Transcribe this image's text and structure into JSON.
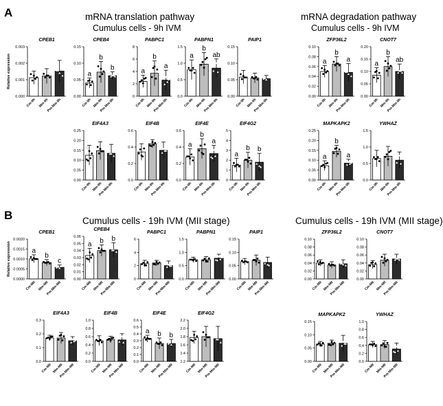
{
  "figure": {
    "panels": [
      {
        "letter": "A",
        "left_title": "mRNA translation pathway",
        "left_subtitle": "Cumulus cells - 9h IVM",
        "right_title": "mRNA degradation pathway",
        "right_subtitle": "Cumulus cells - 9h IVM"
      },
      {
        "letter": "B",
        "left_title": "Cumulus cells - 19h IVM (MII stage)",
        "right_title": "Cumulus cells - 19h IVM (MII stage)"
      }
    ],
    "colors": {
      "group1": "#ffffff",
      "group2": "#bdbdbd",
      "group3": "#2b2b2b",
      "stroke": "#000000"
    }
  },
  "chart_data": [
    {
      "type": "bar",
      "title": "CPEB1",
      "ylabel": "Relative expression",
      "ylim": [
        0,
        0.003
      ],
      "yticks": [
        "0.000",
        "0.001",
        "0.002",
        "0.003"
      ],
      "categories": [
        "Cm-9h",
        "Mm-9h",
        "Pm-Mm-9h"
      ],
      "values": [
        0.00112,
        0.00122,
        0.00152
      ],
      "errors": [
        0.0004,
        0.00045,
        0.00065
      ],
      "letters": [
        "",
        "",
        ""
      ]
    },
    {
      "type": "bar",
      "title": "CPEB4",
      "ylabel": "",
      "ylim": [
        0,
        0.15
      ],
      "yticks": [
        "0.00",
        "0.05",
        "0.10",
        "0.15"
      ],
      "categories": [
        "Cm-9h",
        "Mm-9h",
        "Pm-Mm-9h"
      ],
      "values": [
        0.04,
        0.073,
        0.062
      ],
      "errors": [
        0.015,
        0.032,
        0.012
      ],
      "letters": [
        "a",
        "b",
        "b"
      ]
    },
    {
      "type": "bar",
      "title": "PABPC1",
      "ylabel": "",
      "ylim": [
        0,
        8
      ],
      "yticks": [
        "0",
        "2",
        "4",
        "6",
        "8"
      ],
      "categories": [
        "Cm-9h",
        "Mm-9h",
        "Pm-Mm-9h"
      ],
      "values": [
        2.4,
        3.7,
        2.6
      ],
      "errors": [
        1.0,
        2.0,
        1.6
      ],
      "letters": [
        "a",
        "b",
        "a"
      ]
    },
    {
      "type": "bar",
      "title": "PABPN1",
      "ylabel": "",
      "ylim": [
        0,
        1.5
      ],
      "yticks": [
        "0.0",
        "0.5",
        "1.0",
        "1.5"
      ],
      "categories": [
        "Cm-9h",
        "Mm-9h",
        "Pm-Mm-9h"
      ],
      "values": [
        0.8,
        0.97,
        0.85
      ],
      "errors": [
        0.3,
        0.35,
        0.28
      ],
      "letters": [
        "a",
        "b",
        "ab"
      ]
    },
    {
      "type": "bar",
      "title": "PAIP1",
      "ylabel": "",
      "ylim": [
        0,
        0.15
      ],
      "yticks": [
        "0.00",
        "0.05",
        "0.10",
        "0.15"
      ],
      "categories": [
        "Cm-9h",
        "Mm-9h",
        "Pm-Mm-9h"
      ],
      "values": [
        0.058,
        0.055,
        0.053
      ],
      "errors": [
        0.02,
        0.015,
        0.01
      ],
      "letters": [
        "",
        "",
        ""
      ]
    },
    {
      "type": "bar",
      "title": "EIF4A3",
      "ylabel": "",
      "ylim": [
        0,
        0.25
      ],
      "yticks": [
        "0.00",
        "0.05",
        "0.10",
        "0.15",
        "0.20",
        "0.25"
      ],
      "categories": [
        "Cm-9h",
        "Mm-9h",
        "Pm-Mm-9h"
      ],
      "values": [
        0.125,
        0.148,
        0.135
      ],
      "errors": [
        0.05,
        0.045,
        0.045
      ],
      "letters": [
        "",
        "",
        ""
      ]
    },
    {
      "type": "bar",
      "title": "EIF4B",
      "ylabel": "",
      "ylim": [
        0,
        0.6
      ],
      "yticks": [
        "0.0",
        "0.2",
        "0.4",
        "0.6"
      ],
      "categories": [
        "Cm-9h",
        "Mm-9h",
        "Pm-Mm-9h"
      ],
      "values": [
        0.34,
        0.44,
        0.36
      ],
      "errors": [
        0.1,
        0.05,
        0.1
      ],
      "letters": [
        "",
        "",
        ""
      ]
    },
    {
      "type": "bar",
      "title": "EIF4E",
      "ylabel": "",
      "ylim": [
        0,
        0.6
      ],
      "yticks": [
        "0.0",
        "0.2",
        "0.4",
        "0.6"
      ],
      "categories": [
        "Cm-9h",
        "Mm-9h",
        "Pm-Mm-9h"
      ],
      "values": [
        0.28,
        0.38,
        0.32
      ],
      "errors": [
        0.1,
        0.12,
        0.1
      ],
      "letters": [
        "a",
        "b",
        "a"
      ]
    },
    {
      "type": "bar",
      "title": "EIF4G2",
      "ylabel": "",
      "ylim": [
        0,
        5
      ],
      "yticks": [
        "0",
        "1",
        "2",
        "3",
        "4",
        "5"
      ],
      "categories": [
        "Cm-9h",
        "Mm-9h",
        "Pm-Mm-9h"
      ],
      "values": [
        1.5,
        2.0,
        1.8
      ],
      "errors": [
        0.7,
        0.8,
        0.9
      ],
      "letters": [
        "a",
        "b",
        "b"
      ]
    },
    {
      "type": "bar",
      "title": "ZFP36L2",
      "ylabel": "",
      "ylim": [
        0,
        0.1
      ],
      "yticks": [
        "0.00",
        "0.02",
        "0.04",
        "0.06",
        "0.08",
        "0.10"
      ],
      "categories": [
        "Cm-9h",
        "Mm-9h",
        "Pm-Mm-9h"
      ],
      "values": [
        0.05,
        0.065,
        0.048
      ],
      "errors": [
        0.012,
        0.015,
        0.018
      ],
      "letters": [
        "a",
        "b",
        "a"
      ]
    },
    {
      "type": "bar",
      "title": "CNOT7",
      "ylabel": "",
      "ylim": [
        0,
        0.2
      ],
      "yticks": [
        "0.00",
        "0.05",
        "0.10",
        "0.15",
        "0.20"
      ],
      "categories": [
        "Cm-9h",
        "Mm-9h",
        "Pm-Mm-9h"
      ],
      "values": [
        0.085,
        0.12,
        0.1
      ],
      "errors": [
        0.03,
        0.04,
        0.03
      ],
      "letters": [
        "a",
        "b",
        "ab"
      ]
    },
    {
      "type": "bar",
      "title": "MAPKAPK2",
      "ylabel": "",
      "ylim": [
        0,
        0.25
      ],
      "yticks": [
        "0.00",
        "0.05",
        "0.10",
        "0.15",
        "0.20",
        "0.25"
      ],
      "categories": [
        "Cm-9h",
        "Mm-9h",
        "Pm-Mm-9h"
      ],
      "values": [
        0.072,
        0.145,
        0.085
      ],
      "errors": [
        0.025,
        0.03,
        0.02
      ],
      "letters": [
        "a",
        "b",
        "a"
      ]
    },
    {
      "type": "bar",
      "title": "YWHAZ",
      "ylabel": "",
      "ylim": [
        0,
        1.5
      ],
      "yticks": [
        "0.0",
        "0.5",
        "1.0",
        "1.5"
      ],
      "categories": [
        "Cm-9h",
        "Mm-9h",
        "Pm-Mm-9h"
      ],
      "values": [
        0.65,
        0.72,
        0.6
      ],
      "errors": [
        0.25,
        0.3,
        0.25
      ],
      "letters": [
        "",
        "",
        ""
      ]
    },
    {
      "type": "bar",
      "title": "CPEB1",
      "ylabel": "Relative expression",
      "ylim": [
        0,
        0.002
      ],
      "yticks": [
        "0.0000",
        "0.0005",
        "0.0010",
        "0.0015",
        "0.0020"
      ],
      "categories": [
        "Cm-MII",
        "Mm-MII",
        "Pm-Mm-MII"
      ],
      "values": [
        0.00101,
        0.00082,
        0.00058
      ],
      "errors": [
        0.0002,
        0.00015,
        0.00012
      ],
      "letters": [
        "a",
        "b",
        "c"
      ]
    },
    {
      "type": "bar",
      "title": "CPEB4",
      "ylabel": "",
      "ylim": [
        0,
        0.06
      ],
      "yticks": [
        "0.00",
        "0.01",
        "0.02",
        "0.03",
        "0.04",
        "0.05",
        "0.06"
      ],
      "categories": [
        "Cm-MII",
        "Mm-MII",
        "Pm-Mm-MII"
      ],
      "values": [
        0.033,
        0.04,
        0.041
      ],
      "errors": [
        0.01,
        0.008,
        0.01
      ],
      "letters": [
        "a",
        "b",
        "b"
      ]
    },
    {
      "type": "bar",
      "title": "PABPC1",
      "ylabel": "",
      "ylim": [
        0,
        6
      ],
      "yticks": [
        "0",
        "2",
        "4",
        "6"
      ],
      "categories": [
        "Cm-MII",
        "Mm-MII",
        "Pm-Mm-MII"
      ],
      "values": [
        2.3,
        2.4,
        2.0
      ],
      "errors": [
        0.5,
        0.4,
        0.7
      ],
      "letters": [
        "",
        "",
        ""
      ]
    },
    {
      "type": "bar",
      "title": "PABPN1",
      "ylabel": "",
      "ylim": [
        0,
        1.5
      ],
      "yticks": [
        "0.0",
        "0.5",
        "1.0",
        "1.5"
      ],
      "categories": [
        "Cm-MII",
        "Mm-MII",
        "Pm-Mm-MII"
      ],
      "values": [
        0.72,
        0.72,
        0.78
      ],
      "errors": [
        0.1,
        0.12,
        0.15
      ],
      "letters": [
        "",
        "",
        ""
      ]
    },
    {
      "type": "bar",
      "title": "PAIP1",
      "ylabel": "",
      "ylim": [
        0,
        0.15
      ],
      "yticks": [
        "0.00",
        "0.05",
        "0.10",
        "0.15"
      ],
      "categories": [
        "Cm-MII",
        "Mm-MII",
        "Pm-Mm-MII"
      ],
      "values": [
        0.065,
        0.07,
        0.062
      ],
      "errors": [
        0.012,
        0.02,
        0.02
      ],
      "letters": [
        "",
        "",
        ""
      ]
    },
    {
      "type": "bar",
      "title": "ZFP36L2",
      "ylabel": "",
      "ylim": [
        0,
        0.1
      ],
      "yticks": [
        "0.00",
        "0.02",
        "0.04",
        "0.06",
        "0.08",
        "0.10"
      ],
      "categories": [
        "Cm-MII",
        "Mm-MII",
        "Pm-Mm-MII"
      ],
      "values": [
        0.04,
        0.035,
        0.038
      ],
      "errors": [
        0.008,
        0.008,
        0.01
      ],
      "letters": [
        "",
        "",
        ""
      ]
    },
    {
      "type": "bar",
      "title": "CNOT7",
      "ylabel": "",
      "ylim": [
        0,
        0.1
      ],
      "yticks": [
        "0.00",
        "0.02",
        "0.04",
        "0.06",
        "0.08",
        "0.10"
      ],
      "categories": [
        "Cm-MII",
        "Mm-MII",
        "Pm-Mm-MII"
      ],
      "values": [
        0.036,
        0.047,
        0.05
      ],
      "errors": [
        0.01,
        0.015,
        0.012
      ],
      "letters": [
        "",
        "",
        ""
      ]
    },
    {
      "type": "bar",
      "title": "EIF4A3",
      "ylabel": "",
      "ylim": [
        0,
        0.3
      ],
      "yticks": [
        "0.0",
        "0.1",
        "0.2",
        "0.3"
      ],
      "categories": [
        "Cm-MII",
        "Mm-MII",
        "Pm-Mm-MII"
      ],
      "values": [
        0.17,
        0.17,
        0.15
      ],
      "errors": [
        0.02,
        0.04,
        0.03
      ],
      "letters": [
        "",
        "",
        ""
      ]
    },
    {
      "type": "bar",
      "title": "EIF4B",
      "ylabel": "",
      "ylim": [
        0,
        1
      ],
      "yticks": [
        "0.0",
        "0.2",
        "0.4",
        "0.6",
        "0.8",
        "1.0"
      ],
      "categories": [
        "Cm-MII",
        "Mm-MII",
        "Pm-Mm-MII"
      ],
      "values": [
        0.5,
        0.53,
        0.52
      ],
      "errors": [
        0.12,
        0.08,
        0.15
      ],
      "letters": [
        "",
        "",
        ""
      ]
    },
    {
      "type": "bar",
      "title": "EIF4E",
      "ylabel": "",
      "ylim": [
        0,
        0.6
      ],
      "yticks": [
        "0.0",
        "0.1",
        "0.2",
        "0.3",
        "0.4",
        "0.5",
        "0.6"
      ],
      "categories": [
        "Cm-MII",
        "Mm-MII",
        "Pm-Mm-MII"
      ],
      "values": [
        0.33,
        0.26,
        0.26
      ],
      "errors": [
        0.05,
        0.08,
        0.06
      ],
      "letters": [
        "a",
        "b",
        "b"
      ]
    },
    {
      "type": "bar",
      "title": "EIF4G2",
      "ylabel": "",
      "ylim": [
        1.2,
        2.2
      ],
      "yticks": [
        "1.2",
        "1.4",
        "1.6",
        "1.8",
        "2.0",
        "2.2"
      ],
      "categories": [
        "Cm-MII",
        "Mm-MII",
        "Pm-Mm-MII"
      ],
      "values": [
        1.78,
        1.8,
        1.75
      ],
      "errors": [
        0.15,
        0.25,
        0.3
      ],
      "letters": [
        "",
        "",
        ""
      ]
    },
    {
      "type": "bar",
      "title": "MAPKAPK2",
      "ylabel": "",
      "ylim": [
        0,
        0.15
      ],
      "yticks": [
        "0.00",
        "0.05",
        "0.10",
        "0.15"
      ],
      "categories": [
        "Cm-MII",
        "Mm-MII",
        "Pm-Mm-MII"
      ],
      "values": [
        0.065,
        0.068,
        0.068
      ],
      "errors": [
        0.01,
        0.012,
        0.03
      ],
      "letters": [
        "",
        "",
        ""
      ]
    },
    {
      "type": "bar",
      "title": "YWHAZ",
      "ylabel": "",
      "ylim": [
        0,
        1
      ],
      "yticks": [
        "0.0",
        "0.2",
        "0.4",
        "0.6",
        "0.8",
        "1.0"
      ],
      "categories": [
        "Cm-MII",
        "Mm-MII",
        "Pm-Mm-MII"
      ],
      "values": [
        0.42,
        0.42,
        0.31
      ],
      "errors": [
        0.08,
        0.1,
        0.15
      ],
      "letters": [
        "",
        "",
        ""
      ]
    }
  ]
}
